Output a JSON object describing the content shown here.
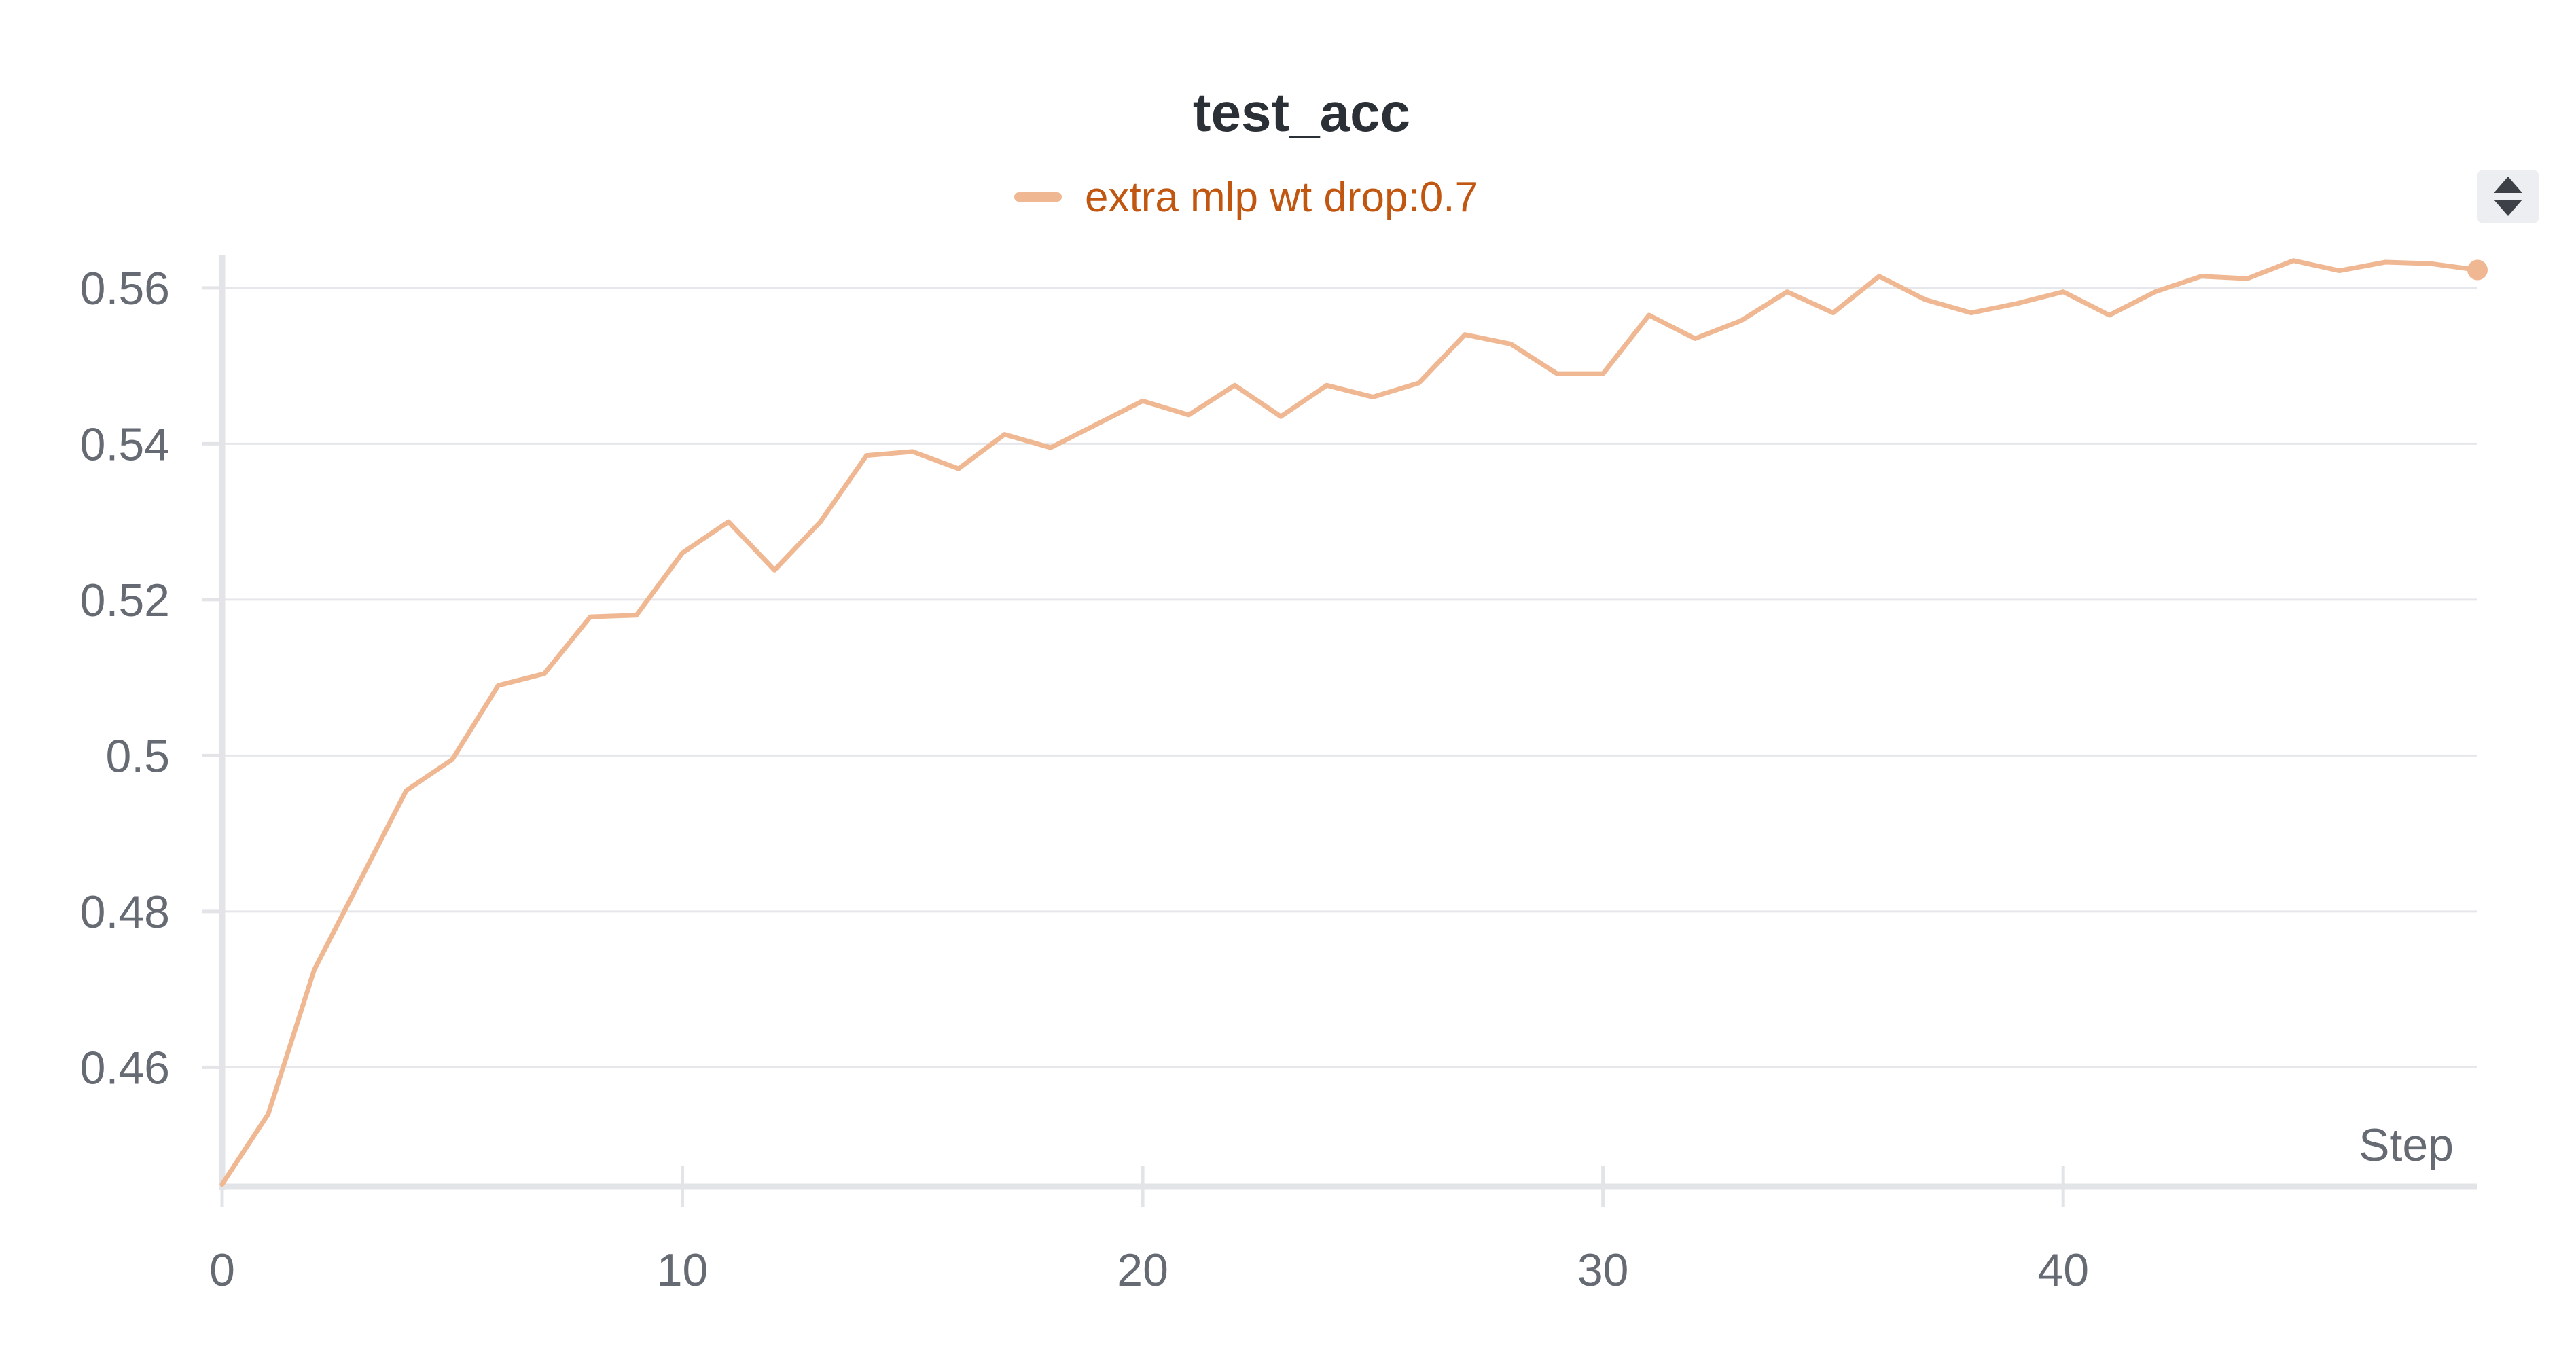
{
  "chart_data": {
    "type": "line",
    "title": "test_acc",
    "xlabel": "Step",
    "ylabel": "",
    "xlim": [
      0,
      49
    ],
    "ylim": [
      0.4447,
      0.5633
    ],
    "grid": true,
    "legend_position": "top-center",
    "x_ticks": [
      0,
      10,
      20,
      30,
      40
    ],
    "y_ticks": [
      0.46,
      0.48,
      0.5,
      0.52,
      0.54,
      0.56
    ],
    "x_tick_labels": [
      "0",
      "10",
      "20",
      "30",
      "40"
    ],
    "y_tick_labels": [
      "0.46",
      "0.48",
      "0.5",
      "0.52",
      "0.54",
      "0.56"
    ],
    "series": [
      {
        "name": "extra mlp wt drop:0.7",
        "color": "#f0b892",
        "x": [
          0,
          1,
          2,
          3,
          4,
          5,
          6,
          7,
          8,
          9,
          10,
          11,
          12,
          13,
          14,
          15,
          16,
          17,
          18,
          19,
          20,
          21,
          22,
          23,
          24,
          25,
          26,
          27,
          28,
          29,
          30,
          31,
          32,
          33,
          34,
          35,
          36,
          37,
          38,
          39,
          40,
          41,
          42,
          43,
          44,
          45,
          46,
          47,
          48,
          49
        ],
        "y": [
          0.445,
          0.454,
          0.4725,
          0.484,
          0.4955,
          0.4995,
          0.509,
          0.5105,
          0.5178,
          0.518,
          0.526,
          0.53,
          0.5238,
          0.53,
          0.5385,
          0.539,
          0.5368,
          0.5412,
          0.5395,
          0.5425,
          0.5455,
          0.5437,
          0.5475,
          0.5435,
          0.5475,
          0.546,
          0.5478,
          0.554,
          0.5528,
          0.549,
          0.549,
          0.5565,
          0.5535,
          0.5558,
          0.5595,
          0.5568,
          0.5615,
          0.5585,
          0.5568,
          0.558,
          0.5595,
          0.5565,
          0.5595,
          0.5615,
          0.5612,
          0.5635,
          0.5622,
          0.5633,
          0.5631,
          0.5623
        ]
      }
    ]
  },
  "controls": {
    "sort_icon": "sort-arrows-icon"
  }
}
